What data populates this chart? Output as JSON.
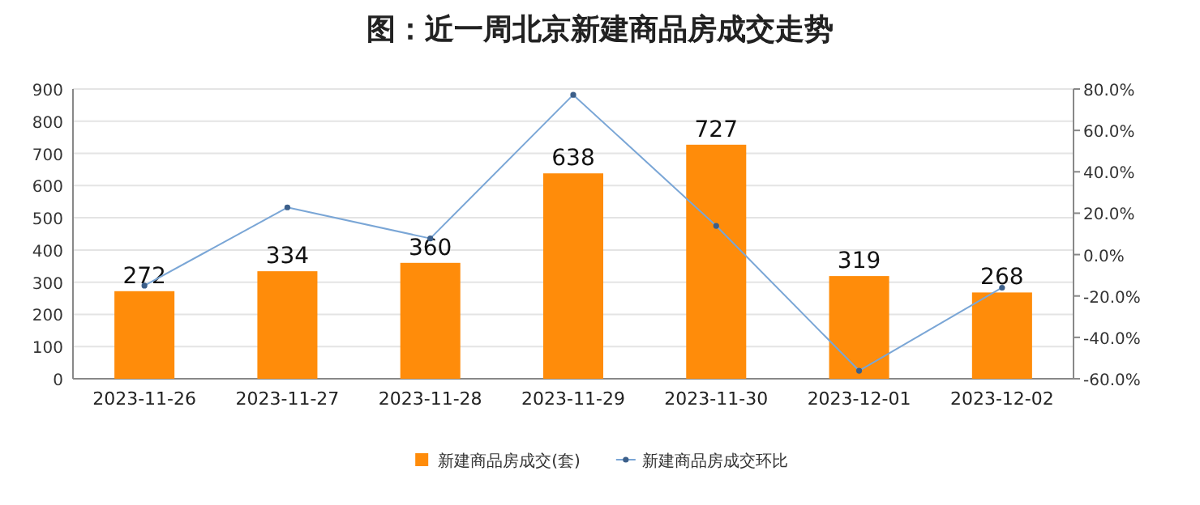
{
  "chart_data": {
    "type": "bar",
    "title": "图：近一周北京新建商品房成交走势",
    "categories": [
      "2023-11-26",
      "2023-11-27",
      "2023-11-28",
      "2023-11-29",
      "2023-11-30",
      "2023-12-01",
      "2023-12-02"
    ],
    "series": [
      {
        "name": "新建商品房成交(套)",
        "color": "#ff8c0a",
        "values": [
          272,
          334,
          360,
          638,
          727,
          319,
          268
        ],
        "value_labels": [
          "272",
          "334",
          "360",
          "638",
          "727",
          "319",
          "268"
        ]
      },
      {
        "name": "新建商品房成交环比",
        "type": "line",
        "axis": "y2",
        "color": "#7aa6d6",
        "values": [
          -15.0,
          22.8,
          7.8,
          77.2,
          13.9,
          -56.1,
          -16.0
        ]
      }
    ],
    "ylim": [
      0,
      900
    ],
    "yticks": [
      0,
      100,
      200,
      300,
      400,
      500,
      600,
      700,
      800,
      900
    ],
    "y2lim": [
      -60,
      80
    ],
    "y2ticks": [
      {
        "value": -60,
        "label": "-60.0%"
      },
      {
        "value": -40,
        "label": "-40.0%"
      },
      {
        "value": -20,
        "label": "-20.0%"
      },
      {
        "value": 0,
        "label": "0.0%"
      },
      {
        "value": 20,
        "label": "20.0%"
      },
      {
        "value": 40,
        "label": "40.0%"
      },
      {
        "value": 60,
        "label": "60.0%"
      },
      {
        "value": 80,
        "label": "80.0%"
      }
    ],
    "grid": "y",
    "legend": "bottom",
    "marker": "circle"
  }
}
